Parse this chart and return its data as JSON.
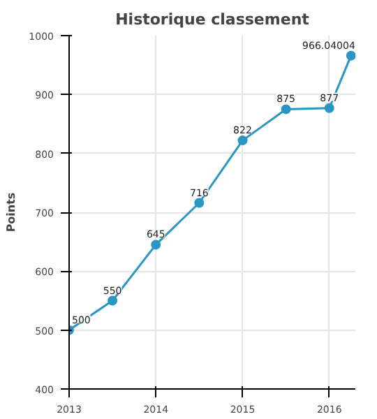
{
  "chart_data": {
    "type": "line",
    "title": "Historique classement",
    "ylabel": "Points",
    "x": [
      2013,
      2013.5,
      2014,
      2014.5,
      2015,
      2015.5,
      2016,
      2016.25
    ],
    "series": [
      {
        "color": "#2a96c4",
        "values": [
          500,
          550,
          645,
          716,
          822,
          875,
          877,
          966.04004
        ]
      }
    ],
    "xlim": [
      2013,
      2016.3
    ],
    "xticks": [
      2013,
      2014,
      2015,
      2016
    ],
    "ylim": [
      400,
      1000
    ],
    "yticks": [
      400,
      500,
      600,
      700,
      800,
      900,
      1000
    ],
    "grid": true,
    "marker": "circle",
    "line_style": "solid",
    "data_labels": true
  }
}
